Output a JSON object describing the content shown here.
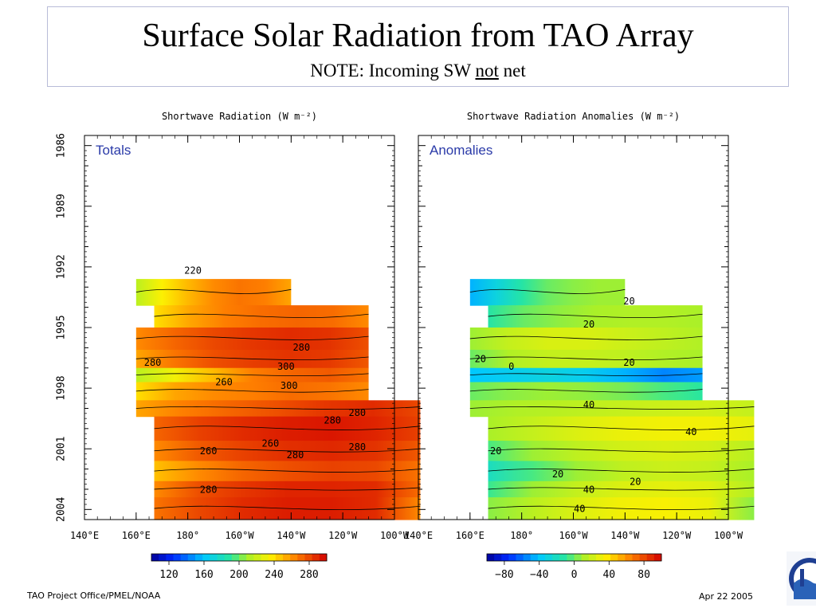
{
  "header": {
    "title": "Surface Solar Radiation from TAO Array",
    "note_prefix": "NOTE: Incoming SW ",
    "note_emph": "not",
    "note_suffix": " net"
  },
  "footer": {
    "left": "TAO Project Office/PMEL/NOAA",
    "right": "Apr 22 2005"
  },
  "chart_data": [
    {
      "type": "heatmap",
      "title": "Shortwave Radiation (W m⁻²)",
      "panel_label": "Totals",
      "x_ticks": [
        "140°E",
        "160°E",
        "180°",
        "160°W",
        "140°W",
        "120°W",
        "100°W"
      ],
      "y_ticks": [
        "1986",
        "1989",
        "1992",
        "1995",
        "1998",
        "2001",
        "2004"
      ],
      "colorbar": {
        "ticks": [
          120,
          160,
          200,
          240,
          280
        ],
        "range": [
          100,
          300
        ]
      },
      "contour_labels": [
        "220",
        "280",
        "280",
        "300",
        "260",
        "300",
        "280",
        "280",
        "260",
        "260",
        "280",
        "280",
        "280"
      ],
      "rows": [
        {
          "t0": 1992.6,
          "t1": 1993.9,
          "lon0": 160,
          "lon1": 220,
          "v": [
            215,
            235,
            250,
            262,
            268,
            265,
            255
          ]
        },
        {
          "t0": 1993.9,
          "t1": 1995.0,
          "lon0": 167,
          "lon1": 250,
          "v": [
            240,
            255,
            265,
            270,
            272,
            270,
            262
          ]
        },
        {
          "t0": 1995.0,
          "t1": 1996.1,
          "lon0": 160,
          "lon1": 250,
          "v": [
            262,
            272,
            280,
            285,
            288,
            286,
            278
          ]
        },
        {
          "t0": 1996.1,
          "t1": 1997.0,
          "lon0": 160,
          "lon1": 250,
          "v": [
            255,
            268,
            278,
            283,
            286,
            284,
            276
          ]
        },
        {
          "t0": 1997.0,
          "t1": 1997.7,
          "lon0": 160,
          "lon1": 250,
          "v": [
            215,
            232,
            250,
            265,
            272,
            275,
            268
          ]
        },
        {
          "t0": 1997.7,
          "t1": 1998.6,
          "lon0": 160,
          "lon1": 250,
          "v": [
            240,
            255,
            262,
            265,
            270,
            268,
            262
          ]
        },
        {
          "t0": 1998.6,
          "t1": 1999.4,
          "lon0": 160,
          "lon1": 270,
          "v": [
            255,
            265,
            272,
            278,
            285,
            288,
            280
          ]
        },
        {
          "t0": 1999.4,
          "t1": 2000.6,
          "lon0": 167,
          "lon1": 270,
          "v": [
            272,
            282,
            288,
            292,
            294,
            290,
            282
          ]
        },
        {
          "t0": 2000.6,
          "t1": 2001.6,
          "lon0": 167,
          "lon1": 270,
          "v": [
            262,
            275,
            282,
            287,
            289,
            286,
            275
          ]
        },
        {
          "t0": 2001.6,
          "t1": 2002.6,
          "lon0": 167,
          "lon1": 270,
          "v": [
            248,
            262,
            272,
            278,
            282,
            280,
            268
          ]
        },
        {
          "t0": 2002.6,
          "t1": 2003.4,
          "lon0": 167,
          "lon1": 270,
          "v": [
            262,
            278,
            285,
            290,
            290,
            288,
            270
          ]
        },
        {
          "t0": 2003.4,
          "t1": 2004.5,
          "lon0": 167,
          "lon1": 270,
          "v": [
            268,
            280,
            288,
            292,
            292,
            288,
            262
          ]
        }
      ]
    },
    {
      "type": "heatmap",
      "title": "Shortwave Radiation Anomalies (W m⁻²)",
      "panel_label": "Anomalies",
      "x_ticks": [
        "140°E",
        "160°E",
        "180°",
        "160°W",
        "140°W",
        "120°W",
        "100°W"
      ],
      "y_ticks": [
        "1986",
        "1989",
        "1992",
        "1995",
        "1998",
        "2001",
        "2004"
      ],
      "colorbar": {
        "ticks": [
          -80,
          -40,
          0,
          40,
          80
        ],
        "range": [
          -100,
          100
        ]
      },
      "contour_labels": [
        "20",
        "20",
        "20",
        "0",
        "20",
        "40",
        "40",
        "20",
        "20",
        "20",
        "40",
        "40"
      ],
      "rows": [
        {
          "t0": 1992.6,
          "t1": 1993.9,
          "lon0": 160,
          "lon1": 220,
          "v": [
            -45,
            -30,
            -12,
            0,
            5,
            8,
            8
          ]
        },
        {
          "t0": 1993.9,
          "t1": 1995.0,
          "lon0": 167,
          "lon1": 250,
          "v": [
            -12,
            0,
            6,
            10,
            12,
            12,
            10
          ]
        },
        {
          "t0": 1995.0,
          "t1": 1996.1,
          "lon0": 160,
          "lon1": 250,
          "v": [
            8,
            18,
            24,
            24,
            20,
            16,
            12
          ]
        },
        {
          "t0": 1996.1,
          "t1": 1997.0,
          "lon0": 160,
          "lon1": 250,
          "v": [
            0,
            12,
            18,
            18,
            16,
            12,
            10
          ]
        },
        {
          "t0": 1997.0,
          "t1": 1997.7,
          "lon0": 160,
          "lon1": 250,
          "v": [
            -40,
            -35,
            -30,
            -35,
            -45,
            -55,
            -50
          ]
        },
        {
          "t0": 1997.7,
          "t1": 1998.6,
          "lon0": 160,
          "lon1": 250,
          "v": [
            0,
            5,
            8,
            6,
            2,
            -5,
            -10
          ]
        },
        {
          "t0": 1998.6,
          "t1": 1999.4,
          "lon0": 160,
          "lon1": 270,
          "v": [
            8,
            12,
            15,
            18,
            20,
            22,
            18
          ]
        },
        {
          "t0": 1999.4,
          "t1": 2000.6,
          "lon0": 167,
          "lon1": 270,
          "v": [
            10,
            18,
            25,
            30,
            32,
            32,
            28
          ]
        },
        {
          "t0": 2000.6,
          "t1": 2001.6,
          "lon0": 167,
          "lon1": 270,
          "v": [
            -5,
            8,
            16,
            22,
            24,
            22,
            14
          ]
        },
        {
          "t0": 2001.6,
          "t1": 2002.6,
          "lon0": 167,
          "lon1": 270,
          "v": [
            -20,
            -5,
            8,
            16,
            20,
            18,
            10
          ]
        },
        {
          "t0": 2002.6,
          "t1": 2003.4,
          "lon0": 167,
          "lon1": 270,
          "v": [
            -8,
            8,
            18,
            25,
            28,
            26,
            12
          ]
        },
        {
          "t0": 2003.4,
          "t1": 2004.5,
          "lon0": 167,
          "lon1": 270,
          "v": [
            5,
            15,
            25,
            32,
            34,
            30,
            5
          ]
        }
      ]
    }
  ]
}
